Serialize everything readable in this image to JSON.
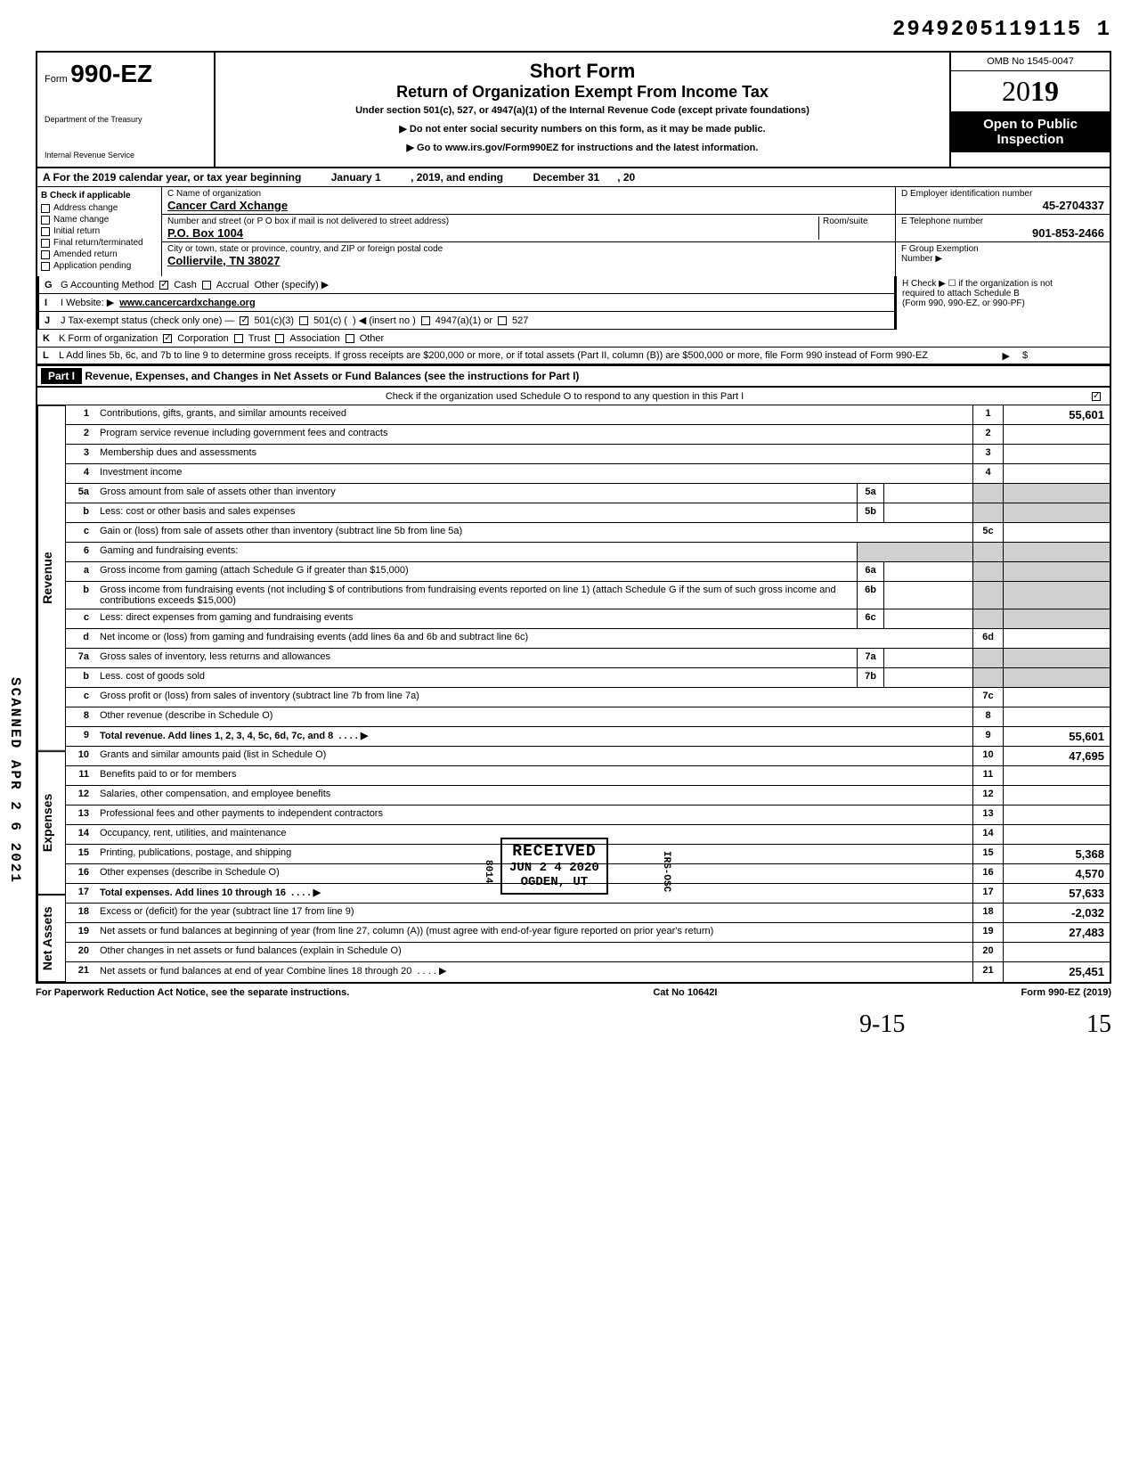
{
  "dln": "2949205119115 1",
  "header": {
    "form_prefix": "Form",
    "form_no": "990-EZ",
    "title1": "Short Form",
    "title2": "Return of Organization Exempt From Income Tax",
    "subtitle": "Under section 501(c), 527, or 4947(a)(1) of the Internal Revenue Code (except private foundations)",
    "arrow1": "▶ Do not enter social security numbers on this form, as it may be made public.",
    "arrow2": "▶ Go to www.irs.gov/Form990EZ for instructions and the latest information.",
    "dept1": "Department of the Treasury",
    "dept2": "Internal Revenue Service",
    "omb": "OMB No 1545-0047",
    "year": "2019",
    "open1": "Open to Public",
    "open2": "Inspection"
  },
  "row_a": {
    "prefix": "A For the 2019 calendar year, or tax year beginning",
    "mid": "January 1",
    "mid2": ", 2019, and ending",
    "end": "December 31",
    "end2": ", 20"
  },
  "col_b": {
    "title": "B Check if applicable",
    "items": [
      "Address change",
      "Name change",
      "Initial return",
      "Final return/terminated",
      "Amended return",
      "Application pending"
    ]
  },
  "col_c": {
    "label_name": "C Name of organization",
    "name": "Cancer Card Xchange",
    "label_addr": "Number and street (or P O box if mail is not delivered to street address)",
    "room": "Room/suite",
    "addr": "P.O. Box 1004",
    "label_city": "City or town, state or province, country, and ZIP or foreign postal code",
    "city": "Colliervile, TN 38027"
  },
  "col_de": {
    "d_label": "D Employer identification number",
    "d_val": "45-2704337",
    "e_label": "E Telephone number",
    "e_val": "901-853-2466",
    "f_label": "F Group Exemption",
    "f_label2": "Number ▶"
  },
  "row_g": {
    "label": "G Accounting Method",
    "opt1": "Cash",
    "opt2": "Accrual",
    "opt3": "Other (specify) ▶"
  },
  "row_h": {
    "text": "H Check ▶ ☐ if the organization is not",
    "text2": "required to attach Schedule B",
    "text3": "(Form 990, 990-EZ, or 990-PF)"
  },
  "row_i": {
    "label": "I Website: ▶",
    "val": "www.cancercardxchange.org"
  },
  "row_j": {
    "label": "J Tax-exempt status (check only one) —",
    "o1": "501(c)(3)",
    "o2": "501(c) (",
    "o3": ") ◀ (insert no )",
    "o4": "4947(a)(1) or",
    "o5": "527"
  },
  "row_k": {
    "label": "K Form of organization",
    "o1": "Corporation",
    "o2": "Trust",
    "o3": "Association",
    "o4": "Other"
  },
  "row_l": {
    "text": "L Add lines 5b, 6c, and 7b to line 9 to determine gross receipts. If gross receipts are $200,000 or more, or if total assets (Part II, column (B)) are $500,000 or more, file Form 990 instead of Form 990-EZ",
    "arrow": "▶",
    "dollar": "$"
  },
  "part1": {
    "label": "Part I",
    "title": "Revenue, Expenses, and Changes in Net Assets or Fund Balances (see the instructions for Part I)",
    "check_line": "Check if the organization used Schedule O to respond to any question in this Part I"
  },
  "tabs": {
    "revenue": "Revenue",
    "expenses": "Expenses",
    "netassets": "Net Assets"
  },
  "lines": {
    "l1": {
      "n": "1",
      "d": "Contributions, gifts, grants, and similar amounts received",
      "rn": "1",
      "rv": "55,601"
    },
    "l2": {
      "n": "2",
      "d": "Program service revenue including government fees and contracts",
      "rn": "2",
      "rv": ""
    },
    "l3": {
      "n": "3",
      "d": "Membership dues and assessments",
      "rn": "3",
      "rv": ""
    },
    "l4": {
      "n": "4",
      "d": "Investment income",
      "rn": "4",
      "rv": ""
    },
    "l5a": {
      "n": "5a",
      "d": "Gross amount from sale of assets other than inventory",
      "mn": "5a"
    },
    "l5b": {
      "n": "b",
      "d": "Less: cost or other basis and sales expenses",
      "mn": "5b"
    },
    "l5c": {
      "n": "c",
      "d": "Gain or (loss) from sale of assets other than inventory (subtract line 5b from line 5a)",
      "rn": "5c",
      "rv": ""
    },
    "l6": {
      "n": "6",
      "d": "Gaming and fundraising events:"
    },
    "l6a": {
      "n": "a",
      "d": "Gross income from gaming (attach Schedule G if greater than $15,000)",
      "mn": "6a"
    },
    "l6b": {
      "n": "b",
      "d": "Gross income from fundraising events (not including  $                    of contributions from fundraising events reported on line 1) (attach Schedule G if the sum of such gross income and contributions exceeds $15,000)",
      "mn": "6b"
    },
    "l6c": {
      "n": "c",
      "d": "Less: direct expenses from gaming and fundraising events",
      "mn": "6c"
    },
    "l6d": {
      "n": "d",
      "d": "Net income or (loss) from gaming and fundraising events (add lines 6a and 6b and subtract line 6c)",
      "rn": "6d",
      "rv": ""
    },
    "l7a": {
      "n": "7a",
      "d": "Gross sales of inventory, less returns and allowances",
      "mn": "7a"
    },
    "l7b": {
      "n": "b",
      "d": "Less. cost of goods sold",
      "mn": "7b"
    },
    "l7c": {
      "n": "c",
      "d": "Gross profit or (loss) from sales of inventory (subtract line 7b from line 7a)",
      "rn": "7c",
      "rv": ""
    },
    "l8": {
      "n": "8",
      "d": "Other revenue (describe in Schedule O)",
      "rn": "8",
      "rv": ""
    },
    "l9": {
      "n": "9",
      "d": "Total revenue. Add lines 1, 2, 3, 4, 5c, 6d, 7c, and 8",
      "rn": "9",
      "rv": "55,601",
      "arrow": "▶"
    },
    "l10": {
      "n": "10",
      "d": "Grants and similar amounts paid (list in Schedule O)",
      "rn": "10",
      "rv": "47,695"
    },
    "l11": {
      "n": "11",
      "d": "Benefits paid to or for members",
      "rn": "11",
      "rv": ""
    },
    "l12": {
      "n": "12",
      "d": "Salaries, other compensation, and employee benefits",
      "rn": "12",
      "rv": ""
    },
    "l13": {
      "n": "13",
      "d": "Professional fees and other payments to independent contractors",
      "rn": "13",
      "rv": ""
    },
    "l14": {
      "n": "14",
      "d": "Occupancy, rent, utilities, and maintenance",
      "rn": "14",
      "rv": ""
    },
    "l15": {
      "n": "15",
      "d": "Printing, publications, postage, and shipping",
      "rn": "15",
      "rv": "5,368"
    },
    "l16": {
      "n": "16",
      "d": "Other expenses (describe in Schedule O)",
      "rn": "16",
      "rv": "4,570"
    },
    "l17": {
      "n": "17",
      "d": "Total expenses. Add lines 10 through 16",
      "rn": "17",
      "rv": "57,633",
      "arrow": "▶"
    },
    "l18": {
      "n": "18",
      "d": "Excess or (deficit) for the year (subtract line 17 from line 9)",
      "rn": "18",
      "rv": "-2,032"
    },
    "l19": {
      "n": "19",
      "d": "Net assets or fund balances at beginning of year (from line 27, column (A)) (must agree with end-of-year figure reported on prior year's return)",
      "rn": "19",
      "rv": "27,483"
    },
    "l20": {
      "n": "20",
      "d": "Other changes in net assets or fund balances (explain in Schedule O)",
      "rn": "20",
      "rv": ""
    },
    "l21": {
      "n": "21",
      "d": "Net assets or fund balances at end of year Combine lines 18 through 20",
      "rn": "21",
      "rv": "25,451",
      "arrow": "▶"
    }
  },
  "stamp": {
    "t1": "RECEIVED",
    "t2": "JUN 2 4 2020",
    "t3": "OGDEN, UT",
    "side1": "8014",
    "side2": "IRS-OSC"
  },
  "footer": {
    "left": "For Paperwork Reduction Act Notice, see the separate instructions.",
    "mid": "Cat No 10642I",
    "right": "Form 990-EZ (2019)"
  },
  "side": "SCANNED APR 2 6 2021",
  "hand1": "9-15",
  "hand2": "15"
}
